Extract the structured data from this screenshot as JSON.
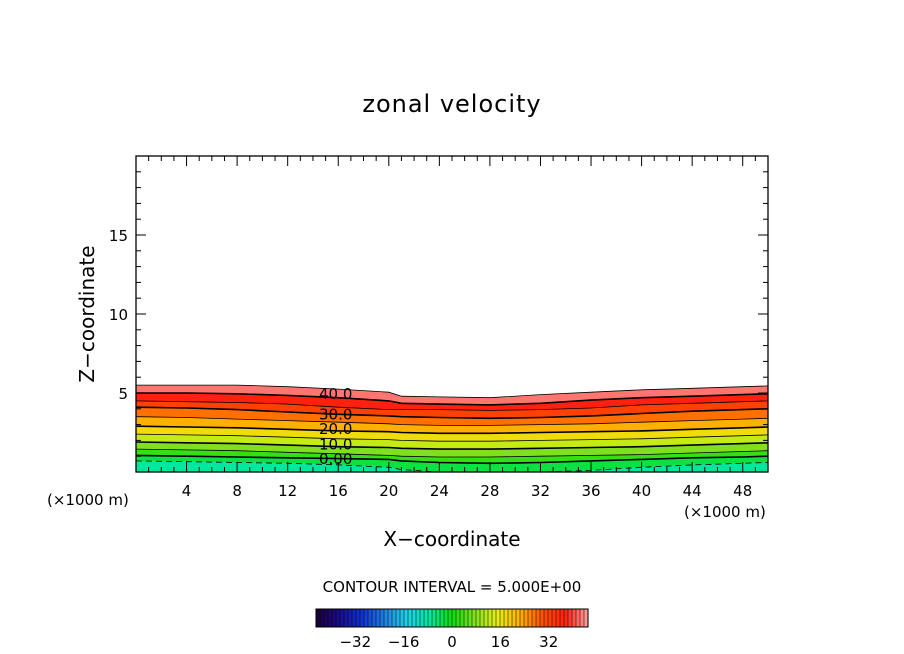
{
  "chart_data": {
    "type": "contour",
    "title": "zonal velocity",
    "xlabel": "X−coordinate",
    "ylabel": "Z−coordinate",
    "x_unit_left": "(×1000 m)",
    "x_unit_right": "(×1000 m)",
    "xlim": [
      0,
      50
    ],
    "ylim": [
      0,
      20
    ],
    "x_ticks": [
      4,
      8,
      12,
      16,
      20,
      24,
      28,
      32,
      36,
      40,
      44,
      48
    ],
    "y_ticks": [
      5,
      10,
      15
    ],
    "contour_interval_text": "CONTOUR INTERVAL = 5.000E+00",
    "contour_labels": [
      {
        "text": "40.0",
        "x": 15.8,
        "z": 5.0
      },
      {
        "text": "30.0",
        "x": 15.8,
        "z": 3.7
      },
      {
        "text": "20.0",
        "x": 15.8,
        "z": 2.8
      },
      {
        "text": "10.0",
        "x": 15.8,
        "z": 1.8
      },
      {
        "text": "0.00",
        "x": 15.8,
        "z": 0.9
      }
    ],
    "x_nodes": [
      0,
      4,
      8,
      12,
      16,
      20,
      21,
      24,
      28,
      32,
      36,
      40,
      44,
      48,
      50
    ],
    "contours": [
      {
        "level": 45,
        "z": [
          5.5,
          5.5,
          5.5,
          5.4,
          5.25,
          5.05,
          4.8,
          4.75,
          4.7,
          4.9,
          5.05,
          5.2,
          5.3,
          5.4,
          5.45
        ]
      },
      {
        "level": 40,
        "z": [
          5.0,
          5.0,
          4.95,
          4.85,
          4.7,
          4.5,
          4.35,
          4.3,
          4.25,
          4.35,
          4.55,
          4.7,
          4.8,
          4.9,
          4.95
        ]
      },
      {
        "level": 35,
        "z": [
          4.5,
          4.45,
          4.4,
          4.3,
          4.1,
          3.95,
          3.95,
          3.95,
          3.9,
          3.95,
          4.05,
          4.25,
          4.35,
          4.45,
          4.5
        ]
      },
      {
        "level": 30,
        "z": [
          4.1,
          4.05,
          3.95,
          3.8,
          3.65,
          3.55,
          3.5,
          3.45,
          3.4,
          3.45,
          3.55,
          3.7,
          3.85,
          3.95,
          4.0
        ]
      },
      {
        "level": 25,
        "z": [
          3.5,
          3.45,
          3.35,
          3.25,
          3.15,
          3.05,
          3.0,
          2.95,
          2.95,
          3.0,
          3.05,
          3.15,
          3.25,
          3.35,
          3.4
        ]
      },
      {
        "level": 20,
        "z": [
          2.9,
          2.85,
          2.8,
          2.7,
          2.6,
          2.55,
          2.5,
          2.45,
          2.45,
          2.5,
          2.55,
          2.6,
          2.7,
          2.8,
          2.85
        ]
      },
      {
        "level": 15,
        "z": [
          2.4,
          2.35,
          2.3,
          2.2,
          2.1,
          2.05,
          2.0,
          1.95,
          1.95,
          2.0,
          2.05,
          2.1,
          2.2,
          2.3,
          2.35
        ]
      },
      {
        "level": 10,
        "z": [
          1.9,
          1.85,
          1.8,
          1.7,
          1.6,
          1.55,
          1.5,
          1.45,
          1.45,
          1.5,
          1.55,
          1.6,
          1.7,
          1.8,
          1.85
        ]
      },
      {
        "level": 5,
        "z": [
          1.45,
          1.4,
          1.35,
          1.25,
          1.15,
          1.05,
          1.0,
          0.95,
          0.95,
          1.0,
          1.05,
          1.1,
          1.2,
          1.3,
          1.35
        ]
      },
      {
        "level": 0,
        "z": [
          1.05,
          1.0,
          0.95,
          0.9,
          0.85,
          0.8,
          0.7,
          0.6,
          0.55,
          0.6,
          0.7,
          0.8,
          0.9,
          0.95,
          1.0
        ]
      },
      {
        "level": -5,
        "z": [
          0.7,
          0.65,
          0.6,
          0.55,
          0.45,
          0.3,
          0.15,
          0.0,
          0.0,
          0.0,
          0.1,
          0.3,
          0.45,
          0.55,
          0.6
        ]
      }
    ],
    "colorbar": {
      "range": [
        -45,
        45
      ],
      "ticks": [
        -32,
        -16,
        0,
        16,
        32
      ],
      "colormap": [
        "#1a0033",
        "#1a0b8a",
        "#1030d0",
        "#1f7fe0",
        "#20d0e8",
        "#00e8a0",
        "#10dd10",
        "#80e020",
        "#e8f010",
        "#ffb000",
        "#ff5000",
        "#ff2010",
        "#ffa0a0"
      ]
    }
  }
}
